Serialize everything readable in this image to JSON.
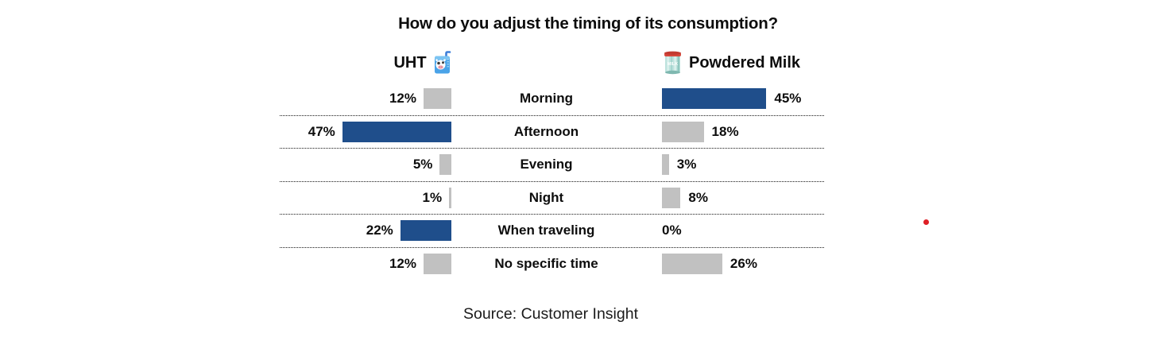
{
  "title": "How do you adjust the timing of its consumption?",
  "source": "Source: Customer Insight",
  "headers": {
    "left": {
      "label": "UHT",
      "icon": "milk-carton-icon"
    },
    "right": {
      "label": "Powdered Milk",
      "icon": "milk-can-icon"
    }
  },
  "colors": {
    "blue": "#1F4E8B",
    "gray": "#C1C1C1",
    "red_dot": "#DE1F26",
    "separator": "#1a1a1a"
  },
  "chart_data": {
    "type": "bar",
    "variant": "diverging-butterfly-horizontal",
    "unit": "%",
    "categories": [
      "Morning",
      "Afternoon",
      "Evening",
      "Night",
      "When traveling",
      "No specific time"
    ],
    "series": [
      {
        "name": "UHT",
        "values": [
          12,
          47,
          5,
          1,
          22,
          12
        ]
      },
      {
        "name": "Powdered Milk",
        "values": [
          45,
          18,
          3,
          8,
          0,
          26
        ]
      }
    ],
    "rows": [
      {
        "category": "Morning",
        "uht": {
          "value": 12,
          "label": "12%",
          "color": "gray"
        },
        "powdered": {
          "value": 45,
          "label": "45%",
          "color": "blue"
        }
      },
      {
        "category": "Afternoon",
        "uht": {
          "value": 47,
          "label": "47%",
          "color": "blue"
        },
        "powdered": {
          "value": 18,
          "label": "18%",
          "color": "gray"
        }
      },
      {
        "category": "Evening",
        "uht": {
          "value": 5,
          "label": "5%",
          "color": "gray"
        },
        "powdered": {
          "value": 3,
          "label": "3%",
          "color": "gray"
        }
      },
      {
        "category": "Night",
        "uht": {
          "value": 1,
          "label": "1%",
          "color": "gray"
        },
        "powdered": {
          "value": 8,
          "label": "8%",
          "color": "gray"
        }
      },
      {
        "category": "When traveling",
        "uht": {
          "value": 22,
          "label": "22%",
          "color": "blue"
        },
        "powdered": {
          "value": 0,
          "label": "0%",
          "color": "none"
        }
      },
      {
        "category": "No specific time",
        "uht": {
          "value": 12,
          "label": "12%",
          "color": "gray"
        },
        "powdered": {
          "value": 26,
          "label": "26%",
          "color": "gray"
        }
      }
    ]
  }
}
